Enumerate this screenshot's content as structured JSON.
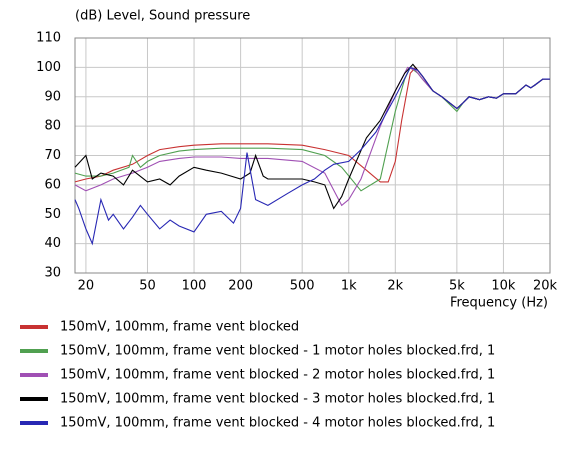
{
  "chart_data": {
    "type": "line",
    "title": "(dB)  Level, Sound pressure",
    "x_label": "Frequency  (Hz)",
    "x_scale": "log",
    "grid": true,
    "xlim": [
      17,
      20000
    ],
    "ylim": [
      30,
      110
    ],
    "xticks": [
      20,
      50,
      100,
      200,
      500,
      {
        "value": 1000,
        "label": "1k"
      },
      {
        "value": 2000,
        "label": "2k"
      },
      {
        "value": 5000,
        "label": "5k"
      },
      {
        "value": 10000,
        "label": "10k"
      },
      {
        "value": 20000,
        "label": "20k"
      }
    ],
    "yticks": [
      30,
      40,
      50,
      60,
      70,
      80,
      90,
      100,
      110
    ],
    "series": [
      {
        "name": "150mV, 100mm, frame vent blocked",
        "color": "#c83232",
        "x": [
          17,
          20,
          25,
          30,
          40,
          50,
          60,
          80,
          100,
          150,
          200,
          300,
          500,
          700,
          1000,
          1300,
          1600,
          1800,
          2000,
          2200,
          2500,
          2700,
          3000,
          3500,
          4000,
          5000,
          5500,
          6000,
          7000,
          8000,
          9000,
          10000,
          12000,
          14000,
          15000,
          16000,
          18000,
          20000
        ],
        "values": [
          61,
          62,
          63,
          65,
          67,
          70,
          72,
          73,
          73.5,
          74,
          74,
          74,
          73.5,
          72,
          70,
          65,
          61,
          61,
          68,
          82,
          98,
          100,
          97,
          92,
          90,
          86,
          88,
          90,
          89,
          90,
          89.5,
          91,
          91,
          94,
          93,
          94,
          96,
          96
        ]
      },
      {
        "name": "150mV, 100mm, frame vent blocked - 1 motor holes blocked.frd, 1",
        "color": "#50a050",
        "x": [
          17,
          20,
          25,
          30,
          38,
          40,
          45,
          50,
          60,
          80,
          100,
          150,
          200,
          300,
          500,
          700,
          900,
          1200,
          1600,
          2000,
          2300,
          2500,
          2800,
          3000,
          3500,
          4000,
          5000,
          5500,
          6000,
          7000,
          8000,
          9000,
          10000,
          12000,
          14000,
          15000,
          16000,
          18000,
          20000
        ],
        "values": [
          64,
          63,
          63,
          64,
          66,
          70,
          66,
          68,
          70,
          71.5,
          72,
          72.5,
          72.5,
          72.5,
          72,
          70,
          66,
          58,
          62,
          85,
          96,
          100,
          98,
          96,
          92,
          90,
          85,
          88,
          90,
          89,
          90,
          89.5,
          91,
          91,
          94,
          93,
          94,
          96,
          96
        ]
      },
      {
        "name": "150mV, 100mm, frame vent blocked - 2 motor holes blocked.frd, 1",
        "color": "#a050b4",
        "x": [
          17,
          20,
          25,
          30,
          40,
          50,
          60,
          80,
          100,
          150,
          200,
          300,
          500,
          700,
          900,
          1000,
          1200,
          1600,
          2000,
          2400,
          2700,
          3000,
          3500,
          4000,
          5000,
          5500,
          6000,
          7000,
          8000,
          9000,
          10000,
          12000,
          14000,
          15000,
          16000,
          18000,
          20000
        ],
        "values": [
          60,
          58,
          60,
          62,
          64,
          66,
          68,
          69,
          69.5,
          69.5,
          69,
          69,
          68,
          64,
          53,
          55,
          62,
          80,
          92,
          100,
          99,
          96,
          92,
          90,
          86,
          88,
          90,
          89,
          90,
          89.5,
          91,
          91,
          94,
          93,
          94,
          96,
          96
        ]
      },
      {
        "name": "150mV, 100mm, frame vent blocked - 3 motor holes blocked.frd, 1",
        "color": "#000000",
        "x": [
          17,
          20,
          22,
          25,
          30,
          35,
          40,
          50,
          60,
          70,
          80,
          100,
          120,
          150,
          200,
          230,
          250,
          280,
          300,
          400,
          500,
          600,
          700,
          800,
          900,
          1000,
          1300,
          1600,
          2000,
          2300,
          2600,
          3000,
          3500,
          4000,
          5000,
          5500,
          6000,
          7000,
          8000,
          9000,
          10000,
          12000,
          14000,
          15000,
          16000,
          18000,
          20000
        ],
        "values": [
          66,
          70,
          62,
          64,
          63,
          60,
          65,
          61,
          62,
          60,
          63,
          66,
          65,
          64,
          62,
          64,
          70,
          63,
          62,
          62,
          62,
          61,
          60,
          52,
          56,
          62,
          76,
          82,
          92,
          98,
          101,
          97,
          92,
          90,
          86,
          88,
          90,
          89,
          90,
          89.5,
          91,
          91,
          94,
          93,
          94,
          96,
          96
        ]
      },
      {
        "name": "150mV, 100mm, frame vent blocked - 4 motor holes blocked.frd, 1",
        "color": "#2828b4",
        "x": [
          17,
          18,
          20,
          22,
          25,
          28,
          30,
          35,
          40,
          45,
          50,
          60,
          70,
          80,
          100,
          120,
          150,
          180,
          200,
          220,
          250,
          300,
          400,
          500,
          600,
          700,
          800,
          1000,
          1200,
          1500,
          2000,
          2500,
          2800,
          3000,
          3500,
          4000,
          5000,
          5500,
          6000,
          7000,
          8000,
          9000,
          10000,
          12000,
          14000,
          15000,
          16000,
          18000,
          20000
        ],
        "values": [
          55,
          52,
          45,
          40,
          55,
          48,
          50,
          45,
          49,
          53,
          50,
          45,
          48,
          46,
          44,
          50,
          51,
          47,
          52,
          71,
          55,
          53,
          57,
          60,
          62,
          65,
          67,
          68,
          72,
          78,
          90,
          100,
          99,
          97,
          92,
          90,
          86,
          88,
          90,
          89,
          90,
          89.5,
          91,
          91,
          94,
          93,
          94,
          96,
          96
        ]
      }
    ]
  }
}
